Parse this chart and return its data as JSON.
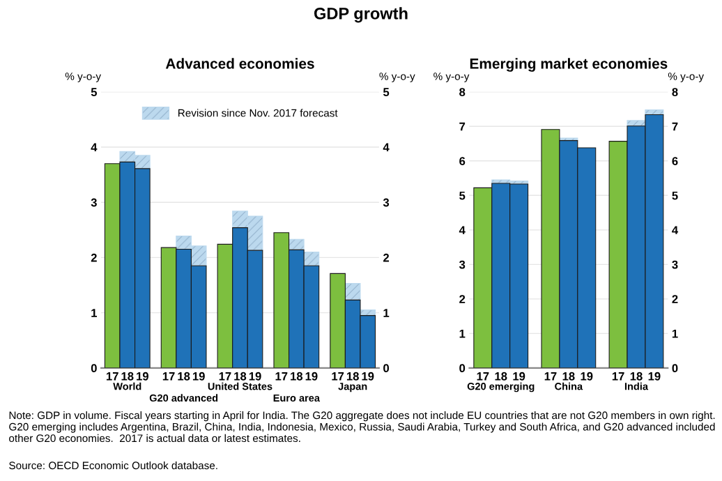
{
  "chart_data": [
    {
      "type": "bar",
      "stacked": true,
      "title": "GDP growth",
      "subtitle": "Advanced economies",
      "ylabel": "% y-o-y",
      "y2label": "% y-o-y",
      "categories": [
        "17",
        "18",
        "19",
        "17",
        "18",
        "19",
        "17",
        "18",
        "19",
        "17",
        "18",
        "19",
        "17",
        "18",
        "19"
      ],
      "series": [
        {
          "colors": [
            "#7dbf3f",
            "#1f72b8",
            "#1f72b8",
            "#7dbf3f",
            "#1f72b8",
            "#1f72b8",
            "#7dbf3f",
            "#1f72b8",
            "#1f72b8",
            "#7dbf3f",
            "#1f72b8",
            "#1f72b8",
            "#7dbf3f",
            "#1f72b8",
            "#1f72b8"
          ],
          "values": [
            3.7,
            3.73,
            3.61,
            2.18,
            2.15,
            1.85,
            2.24,
            2.54,
            2.13,
            2.45,
            2.14,
            1.85,
            1.71,
            1.23,
            0.95
          ]
        },
        {
          "name": "Revision since Nov. 2017 forecast",
          "color": "#bcd9ee",
          "values": [
            null,
            0.19,
            0.24,
            null,
            0.24,
            0.36,
            null,
            0.3,
            0.62,
            null,
            0.19,
            0.25,
            null,
            0.3,
            0.1
          ]
        }
      ],
      "ylim": [
        0,
        5
      ],
      "yticks": [
        0,
        1,
        2,
        3,
        4,
        5
      ],
      "y2lim": [
        0,
        5
      ],
      "y2ticks": [
        0,
        1,
        2,
        3,
        4,
        5
      ],
      "grid": "y",
      "legend": "top",
      "annotations": [
        "World",
        "G20 advanced",
        "United States",
        "Euro area",
        "Japan",
        "Note: GDP in volume. Fiscal years starting in April for India. The G20 aggregate does not include EU countries that are not G20 members in own right. G20 emerging includes Argentina, Brazil, China, India, Indonesia, Mexico, Russia, Saudi Arabia, Turkey and South Africa, and G20 advanced included other G20 economies.  2017 is actual data or latest estimates.",
        "Source: OECD Economic Outlook database."
      ]
    },
    {
      "type": "bar",
      "stacked": true,
      "title": "Emerging market economies",
      "ylabel": "% y-o-y",
      "y2label": "% y-o-y",
      "categories": [
        "17",
        "18",
        "19",
        "17",
        "18",
        "19",
        "17",
        "18",
        "19"
      ],
      "series": [
        {
          "colors": [
            "#7dbf3f",
            "#1f72b8",
            "#1f72b8",
            "#7dbf3f",
            "#1f72b8",
            "#1f72b8",
            "#7dbf3f",
            "#1f72b8",
            "#1f72b8"
          ],
          "values": [
            5.22,
            5.35,
            5.33,
            6.91,
            6.59,
            6.38,
            6.57,
            7.01,
            7.34
          ]
        },
        {
          "color": "#bcd9ee",
          "values": [
            null,
            0.1,
            0.09,
            null,
            0.07,
            null,
            null,
            0.16,
            0.14
          ]
        }
      ],
      "ylim": [
        0,
        8
      ],
      "yticks": [
        0,
        1,
        2,
        3,
        4,
        5,
        6,
        7,
        8
      ],
      "y2lim": [
        0,
        8
      ],
      "y2ticks": [
        0,
        1,
        2,
        3,
        4,
        5,
        6,
        7,
        8
      ],
      "grid": "y",
      "annotations": [
        "G20 emerging",
        "China",
        "India"
      ]
    }
  ]
}
